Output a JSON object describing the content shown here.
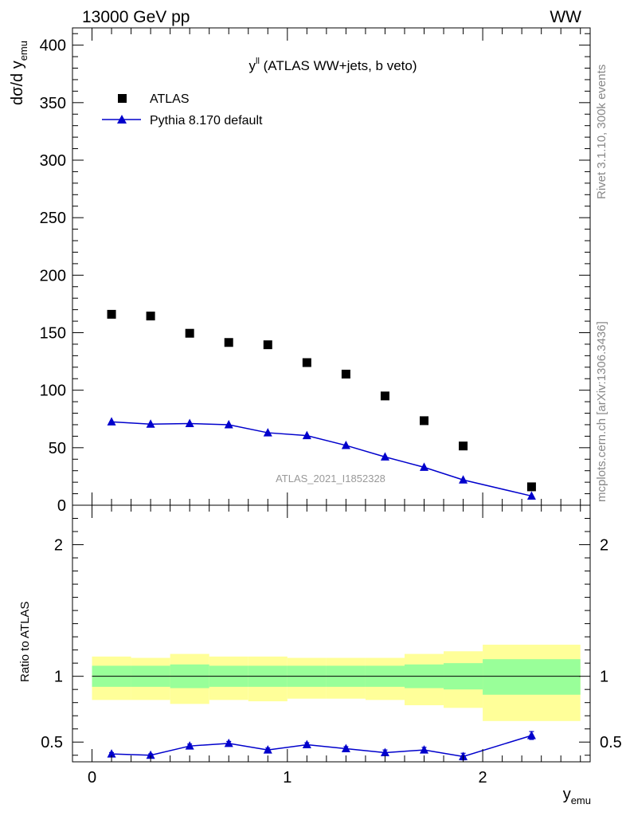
{
  "header": {
    "left": "13000 GeV pp",
    "right": "WW"
  },
  "side_labels": {
    "rivet": "Rivet 3.1.10,  300k events",
    "mcplots": "mcplots.cern.ch [arXiv:1306.3436]"
  },
  "chart_data": [
    {
      "type": "scatter",
      "title": "y",
      "title_sup": "ll",
      "title_rest": " (ATLAS WW+jets, b veto)",
      "ylabel": "dσ/d y",
      "ylabel_sub": "emu",
      "xlim": [
        -0.1,
        2.55
      ],
      "ylim": [
        0,
        415
      ],
      "yticks": [
        0,
        50,
        100,
        150,
        200,
        250,
        300,
        350,
        400
      ],
      "watermark": "ATLAS_2021_I1852328",
      "legend_position": "top-left",
      "series": [
        {
          "name": "ATLAS",
          "color": "#000000",
          "marker": "square",
          "x": [
            0.1,
            0.3,
            0.5,
            0.7,
            0.9,
            1.1,
            1.3,
            1.5,
            1.7,
            1.9,
            2.25
          ],
          "y": [
            166,
            164.5,
            149.5,
            141.5,
            139.5,
            124,
            114,
            95,
            73.5,
            51.5,
            16
          ]
        },
        {
          "name": "Pythia 8.170 default",
          "color": "#0000cc",
          "marker": "triangle",
          "line": true,
          "x": [
            0.1,
            0.3,
            0.5,
            0.7,
            0.9,
            1.1,
            1.3,
            1.5,
            1.7,
            1.9,
            2.25
          ],
          "y": [
            72.5,
            70.5,
            71,
            70,
            63,
            60.5,
            52,
            42,
            33,
            22,
            8
          ]
        }
      ]
    },
    {
      "type": "line",
      "ylabel": "Ratio to ATLAS",
      "xlabel": "y",
      "xlabel_sub": "emu",
      "xlim": [
        -0.1,
        2.55
      ],
      "ylim": [
        0.35,
        2.3
      ],
      "xticks": [
        0,
        1,
        2
      ],
      "yticks": [
        0.5,
        1,
        2
      ],
      "band_colors": {
        "outer": "#ffff99",
        "inner": "#99ff99"
      },
      "bins": {
        "edges": [
          0,
          0.2,
          0.4,
          0.6,
          0.8,
          1.0,
          1.2,
          1.4,
          1.6,
          1.8,
          2.0,
          2.5
        ],
        "inner_low": [
          0.92,
          0.92,
          0.91,
          0.92,
          0.92,
          0.92,
          0.92,
          0.92,
          0.91,
          0.9,
          0.86
        ],
        "inner_high": [
          1.08,
          1.08,
          1.09,
          1.08,
          1.08,
          1.08,
          1.08,
          1.08,
          1.09,
          1.1,
          1.13
        ],
        "outer_low": [
          0.82,
          0.82,
          0.79,
          0.82,
          0.81,
          0.83,
          0.83,
          0.82,
          0.78,
          0.76,
          0.66
        ],
        "outer_high": [
          1.15,
          1.14,
          1.17,
          1.15,
          1.15,
          1.14,
          1.14,
          1.14,
          1.17,
          1.19,
          1.24
        ]
      },
      "series": [
        {
          "name": "Pythia 8.170 default",
          "color": "#0000cc",
          "x": [
            0.1,
            0.3,
            0.5,
            0.7,
            0.9,
            1.1,
            1.3,
            1.5,
            1.7,
            1.9,
            2.25
          ],
          "y": [
            0.41,
            0.4,
            0.47,
            0.49,
            0.44,
            0.48,
            0.45,
            0.42,
            0.44,
            0.39,
            0.55
          ],
          "err": [
            0.01,
            0.01,
            0.015,
            0.015,
            0.015,
            0.015,
            0.015,
            0.02,
            0.02,
            0.025,
            0.03
          ]
        }
      ]
    }
  ]
}
